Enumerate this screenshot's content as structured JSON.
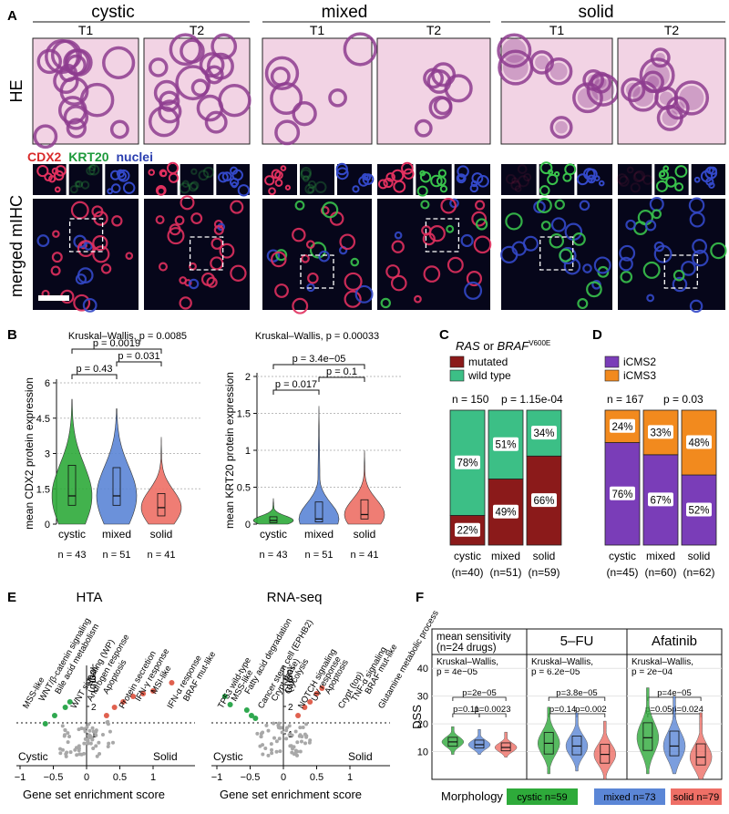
{
  "panel_labels": {
    "a": "A",
    "b": "B",
    "c": "C",
    "d": "D",
    "e": "E",
    "f": "F"
  },
  "panel_a": {
    "groups": [
      "cystic",
      "mixed",
      "solid"
    ],
    "timepoints": [
      "T1",
      "T2",
      "T1",
      "T2",
      "T1",
      "T2"
    ],
    "row_he": "HE",
    "row_mihc": "merged mIHC",
    "markers": [
      {
        "label": "CDX2",
        "color": "#d92b2b"
      },
      {
        "label": "KRT20",
        "color": "#1e9a3c"
      },
      {
        "label": "nuclei",
        "color": "#2b3fb0"
      }
    ],
    "colors": {
      "he_bg": "#f2d3e4",
      "he_cell": "#8e3c8f",
      "ihc_bg": "#06061a",
      "red": "#e0305e",
      "green": "#39c24c",
      "blue": "#3348c8"
    }
  },
  "panel_b": {
    "left": {
      "test_label": "Kruskal–Wallis, p = 0.0085",
      "ylabel": "mean CDX2 protein expression",
      "yticks": [
        "0",
        "1.5",
        "3",
        "4.5",
        "6"
      ],
      "ylim": [
        0,
        6
      ],
      "categories": [
        "cystic",
        "mixed",
        "solid"
      ],
      "counts": [
        "n = 43",
        "n = 51",
        "n = 41"
      ],
      "medians": [
        1.2,
        1.2,
        0.7
      ],
      "q1": [
        0.8,
        0.8,
        0.35
      ],
      "q3": [
        2.5,
        2.4,
        1.3
      ],
      "max": [
        5.3,
        4.9,
        3.7
      ],
      "pvalues": [
        "p = 0.0019",
        "p = 0.031",
        "p = 0.43"
      ]
    },
    "right": {
      "test_label": "Kruskal–Wallis, p = 0.00033",
      "ylabel": "mean KRT20 protein expression",
      "yticks": [
        "0",
        "0.5",
        "1",
        "1.5",
        "2"
      ],
      "ylim": [
        0,
        2
      ],
      "categories": [
        "cystic",
        "mixed",
        "solid"
      ],
      "counts": [
        "n = 43",
        "n = 51",
        "n = 41"
      ],
      "medians": [
        0.05,
        0.07,
        0.13
      ],
      "q1": [
        0.02,
        0.03,
        0.07
      ],
      "q3": [
        0.1,
        0.3,
        0.33
      ],
      "max": [
        0.35,
        1.6,
        1.0
      ],
      "pvalues": [
        "p = 3.4e−05",
        "p = 0.1",
        "p = 0.017"
      ]
    },
    "colors": {
      "cystic": "#2eaa3a",
      "mixed": "#5b86d6",
      "solid": "#ee6f66"
    }
  },
  "chart_data": [
    {
      "type": "bar",
      "panel": "C",
      "title_italic1": "RAS",
      "title_mid": " or ",
      "title_italic2": "BRAF",
      "title_sup": "V600E",
      "legend": [
        "mutated",
        "wild type"
      ],
      "n_label": "n = 150",
      "p_label": "p = 1.15e-04",
      "categories": [
        "cystic",
        "mixed",
        "solid"
      ],
      "counts": [
        "(n=40)",
        "(n=51)",
        "(n=59)"
      ],
      "series": [
        {
          "name": "mutated",
          "values": [
            22,
            49,
            66
          ],
          "labels": [
            "22%",
            "49%",
            "66%"
          ]
        },
        {
          "name": "wild type",
          "values": [
            78,
            51,
            34
          ],
          "labels": [
            "78%",
            "51%",
            "34%"
          ]
        }
      ],
      "colors": {
        "mutated": "#8b1a1a",
        "wild type": "#3cbf86"
      }
    },
    {
      "type": "bar",
      "panel": "D",
      "legend": [
        "iCMS2",
        "iCMS3"
      ],
      "n_label": "n = 167",
      "p_label": "p = 0.03",
      "categories": [
        "cystic",
        "mixed",
        "solid"
      ],
      "counts": [
        "(n=45)",
        "(n=60)",
        "(n=62)"
      ],
      "series": [
        {
          "name": "iCMS2",
          "values": [
            76,
            67,
            52
          ],
          "labels": [
            "76%",
            "67%",
            "52%"
          ]
        },
        {
          "name": "iCMS3",
          "values": [
            24,
            33,
            48
          ],
          "labels": [
            "24%",
            "33%",
            "48%"
          ]
        }
      ],
      "colors": {
        "iCMS2": "#7a3db8",
        "iCMS3": "#f28a1e"
      }
    }
  ],
  "panel_e": {
    "plots": [
      {
        "title": "HTA",
        "labels": [
          "MSS-like",
          "WNT/β-catenin signaling",
          "Bile acid metabolism",
          "WNT signaling (WP)",
          "Androgen response",
          "Apoptosis",
          "Protein secretion",
          "IFN-γ response",
          "MSI-like",
          "IFN-α response",
          "BRAF mut-like"
        ],
        "green_x": [
          -0.62,
          -0.48,
          -0.32,
          -0.25
        ],
        "green_y": [
          1.2,
          1.5,
          1.8,
          2.0
        ],
        "red_x": [
          0.3,
          0.42,
          0.55,
          0.7,
          0.85,
          1.0,
          1.28
        ],
        "red_y": [
          1.5,
          1.8,
          2.0,
          2.2,
          2.3,
          2.4,
          2.7
        ]
      },
      {
        "title": "RNA-seq",
        "labels": [
          "TP53 wild-type",
          "MSS-like",
          "Fatty acid degradation",
          "Cancer stem cell (EPHB2)",
          "Crypt (base)",
          "Glycolysis",
          "NOTCH signaling",
          "UV response",
          "Apoptosis",
          "Crypt (top)",
          "TNF-α signaling",
          "BRAF mut-like",
          "Glutamine metabolic process"
        ],
        "green_x": [
          -0.88,
          -0.8,
          -0.55,
          -0.48,
          -0.42
        ],
        "green_y": [
          2.2,
          1.9,
          1.7,
          1.5,
          1.4
        ],
        "red_x": [
          0.22,
          0.32,
          0.4,
          0.5,
          0.58
        ],
        "red_y": [
          1.5,
          1.8,
          2.0,
          2.3,
          2.5
        ]
      }
    ],
    "axis_label_x": "Gene set enrichment score",
    "axis_label_y": "-log(p)",
    "left_label": "Cystic",
    "right_label": "Solid",
    "xticks": [
      "−1",
      "−0.5",
      "0",
      "0.5",
      "1"
    ],
    "yticks": [
      "1",
      "2",
      "3"
    ],
    "colors": {
      "green": "#2fa84f",
      "red": "#e0614f",
      "grey": "#a8a8a8"
    }
  },
  "panel_f": {
    "ylabel": "DSS",
    "yticks": [
      "10",
      "20",
      "30",
      "40"
    ],
    "ylim": [
      0,
      45
    ],
    "facets": [
      {
        "title": "mean sensitivity\n(n=24 drugs)",
        "title_lines": [
          "mean sensitivity",
          "(n=24 drugs)"
        ],
        "test": [
          "Kruskal–Wallis,",
          "p = 4e−05"
        ],
        "pvalues": [
          "p=2e−05",
          "p=0.11",
          "p=0.0023"
        ],
        "medians": [
          13.5,
          12.5,
          11.5
        ],
        "max": [
          19,
          18,
          17
        ],
        "min": [
          9,
          9,
          8
        ]
      },
      {
        "title": "5–FU",
        "title_lines": [
          "5–FU"
        ],
        "test": [
          "Kruskal–Wallis,",
          "p = 6.2e−05"
        ],
        "pvalues": [
          "p=3.8e−05",
          "p=0.14",
          "p=0.002"
        ],
        "medians": [
          13,
          12,
          9
        ],
        "max": [
          26,
          24,
          21
        ],
        "min": [
          2,
          3,
          0
        ]
      },
      {
        "title": "Afatinib",
        "title_lines": [
          "Afatinib"
        ],
        "test": [
          "Kruskal–Wallis,",
          "p = 2e−04"
        ],
        "pvalues": [
          "p=4e−05",
          "p=0.054",
          "p=0.024"
        ],
        "medians": [
          15,
          12,
          8
        ],
        "max": [
          33,
          30,
          24
        ],
        "min": [
          2,
          2,
          0
        ]
      }
    ],
    "morphology_label": "Morphology",
    "legend": [
      {
        "label": "cystic n=59",
        "color": "#2eaa3a"
      },
      {
        "label": "mixed n=73",
        "color": "#5b86d6"
      },
      {
        "label": "solid n=79",
        "color": "#ee6f66"
      }
    ]
  }
}
